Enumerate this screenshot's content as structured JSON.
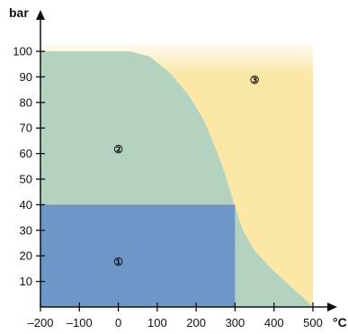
{
  "chart_data": {
    "type": "area",
    "xlabel": "°C",
    "ylabel": "bar",
    "xlim": [
      -200,
      500
    ],
    "ylim": [
      0,
      100
    ],
    "x_ticks": [
      -200,
      -100,
      0,
      100,
      200,
      300,
      400,
      500
    ],
    "x_tick_labels": [
      "–200",
      "–100",
      "0",
      "100",
      "200",
      "300",
      "400",
      "500"
    ],
    "y_ticks": [
      10,
      20,
      30,
      40,
      50,
      60,
      70,
      80,
      90,
      100
    ],
    "y_tick_labels": [
      "10",
      "20",
      "30",
      "40",
      "50",
      "60",
      "70",
      "80",
      "90",
      "100"
    ],
    "grid": false,
    "regions": [
      {
        "label": "③",
        "color": "#fbe7a6",
        "label_at": {
          "x": 350,
          "y": 89
        },
        "polygon": [
          [
            -200,
            0
          ],
          [
            500,
            0
          ],
          [
            500,
            103
          ],
          [
            -200,
            103
          ]
        ]
      },
      {
        "label": "②",
        "color": "#b3d3c0",
        "label_at": {
          "x": 0,
          "y": 62
        },
        "polygon": [
          [
            -200,
            0
          ],
          [
            -200,
            100
          ],
          [
            30,
            100
          ],
          [
            80,
            98
          ],
          [
            130,
            92
          ],
          [
            180,
            83
          ],
          [
            220,
            73
          ],
          [
            250,
            62
          ],
          [
            270,
            54
          ],
          [
            290,
            44
          ],
          [
            300,
            39
          ],
          [
            320,
            30
          ],
          [
            350,
            22
          ],
          [
            400,
            14
          ],
          [
            450,
            7
          ],
          [
            480,
            3
          ],
          [
            500,
            0
          ]
        ]
      },
      {
        "label": "①",
        "color": "#6e96c6",
        "label_at": {
          "x": 0,
          "y": 18
        },
        "polygon": [
          [
            -200,
            0
          ],
          [
            -200,
            40
          ],
          [
            300,
            40
          ],
          [
            300,
            0
          ]
        ]
      }
    ]
  }
}
